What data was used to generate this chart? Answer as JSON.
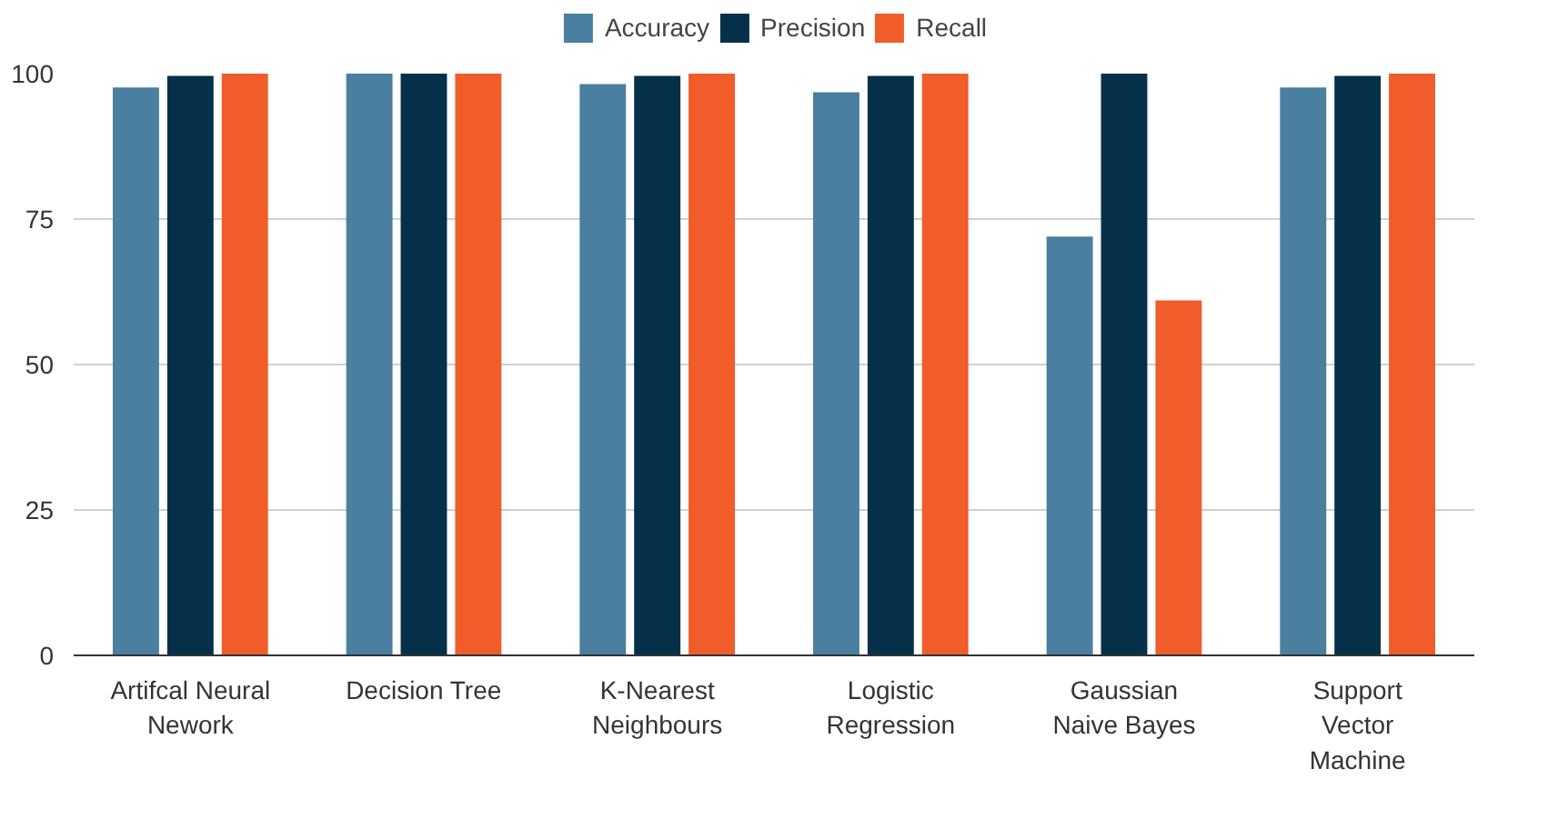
{
  "chart_data": {
    "type": "bar",
    "categories": [
      "Artifcal Neural\nNework",
      "Decision Tree",
      "K-Nearest\nNeighbours",
      "Logistic\nRegression",
      "Gaussian\nNaive Bayes",
      "Support\nVector\nMachine"
    ],
    "series": [
      {
        "name": "Accuracy",
        "color": "#4a7f9f",
        "values": [
          97.6,
          100,
          98.2,
          96.8,
          72,
          97.6
        ]
      },
      {
        "name": "Precision",
        "color": "#06304a",
        "values": [
          99.6,
          100,
          99.6,
          99.6,
          100,
          99.6
        ]
      },
      {
        "name": "Recall",
        "color": "#f05c2a",
        "values": [
          100,
          100,
          100,
          100,
          61,
          100
        ]
      }
    ],
    "ylim": [
      0,
      100
    ],
    "yticks": [
      0,
      25,
      50,
      75,
      100
    ],
    "grid": "y",
    "legend": "top"
  }
}
